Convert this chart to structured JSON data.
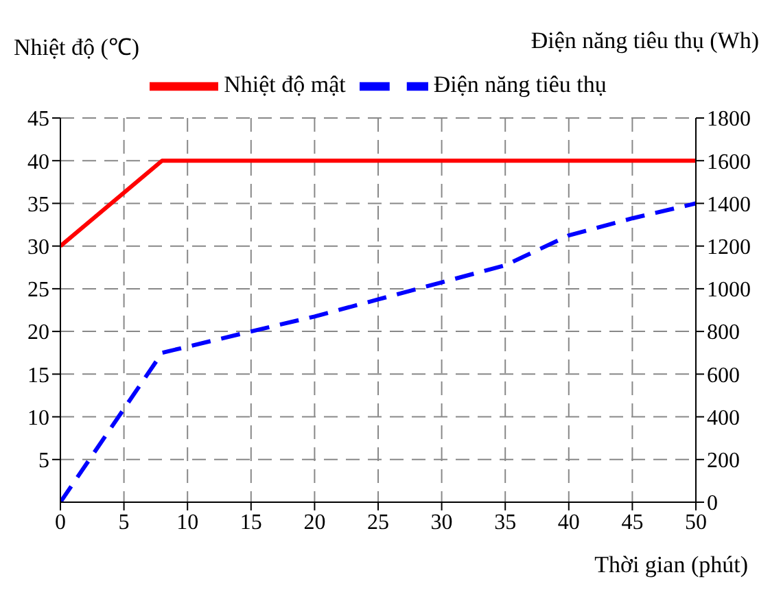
{
  "chart_data": {
    "type": "line",
    "xlabel": "Thời gian (phút)",
    "ylabel": "Nhiệt độ (℃)",
    "y2label": "Điện năng tiêu thụ (Wh)",
    "series": [
      {
        "name": "Nhiệt độ mật",
        "color": "#ff0000",
        "line_style": "solid",
        "x": [
          0,
          8,
          50
        ],
        "values": [
          30,
          40,
          40
        ]
      },
      {
        "name": "Điện năng tiêu thụ",
        "color": "#0000ff",
        "line_style": "dashed",
        "axis": "y2",
        "x": [
          0,
          8,
          15,
          20,
          25,
          30,
          35,
          40,
          45,
          50
        ],
        "values": [
          0,
          700,
          800,
          870,
          950,
          1030,
          1110,
          1250,
          1330,
          1400
        ]
      }
    ],
    "xlim": [
      0,
      50
    ],
    "xticks": [
      0,
      5,
      10,
      15,
      20,
      25,
      30,
      35,
      40,
      45,
      50
    ],
    "ylim": [
      0,
      45
    ],
    "yticks": [
      5,
      10,
      15,
      20,
      25,
      30,
      35,
      40,
      45
    ],
    "y2lim": [
      0,
      1800
    ],
    "y2ticks": [
      0,
      200,
      400,
      600,
      800,
      1000,
      1200,
      1400,
      1600,
      1800
    ],
    "grid": true,
    "legend": "top",
    "marker": "none"
  }
}
